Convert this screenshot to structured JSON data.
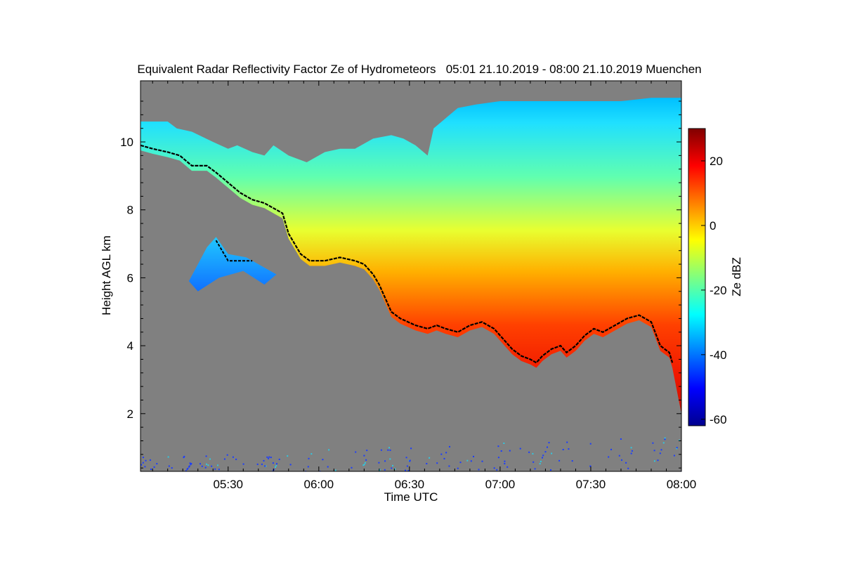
{
  "chart_data": {
    "type": "heatmap",
    "title": "Equivalent Radar Reflectivity Factor Ze of Hydrometeors   05:01 21.10.2019 - 08:00 21.10.2019 Muenchen",
    "xlabel": "Time UTC",
    "ylabel": "Height AGL km",
    "xlim_minutes": [
      301,
      480
    ],
    "ylim": [
      0.3,
      11.8
    ],
    "x_ticks": [
      "05:30",
      "06:00",
      "06:30",
      "07:00",
      "07:30",
      "08:00"
    ],
    "x_tick_values": [
      330,
      360,
      390,
      420,
      450,
      480
    ],
    "y_ticks": [
      "2",
      "4",
      "6",
      "8",
      "10"
    ],
    "y_tick_values": [
      2,
      4,
      6,
      8,
      10
    ],
    "background_color": "#808080",
    "colorbar": {
      "label": "Ze dBZ",
      "range": [
        -62,
        30
      ],
      "ticks": [
        "-60",
        "-40",
        "-20",
        "0",
        "20"
      ],
      "tick_values": [
        -60,
        -40,
        -20,
        0,
        20
      ],
      "colormap": "jet",
      "colors": [
        "#00008f",
        "#0000ff",
        "#00ffff",
        "#ffff00",
        "#ff0000",
        "#800000"
      ]
    },
    "echo_top": [
      [
        301,
        10.6
      ],
      [
        305,
        10.6
      ],
      [
        310,
        10.6
      ],
      [
        313,
        10.4
      ],
      [
        318,
        10.3
      ],
      [
        325,
        10.0
      ],
      [
        330,
        9.8
      ],
      [
        333,
        9.9
      ],
      [
        338,
        9.7
      ],
      [
        342,
        9.6
      ],
      [
        345,
        9.9
      ],
      [
        350,
        9.6
      ],
      [
        356,
        9.4
      ],
      [
        362,
        9.7
      ],
      [
        367,
        9.8
      ],
      [
        372,
        9.8
      ],
      [
        378,
        10.1
      ],
      [
        384,
        10.2
      ],
      [
        388,
        10.1
      ],
      [
        392,
        9.9
      ],
      [
        396,
        9.6
      ],
      [
        398,
        10.4
      ],
      [
        402,
        10.7
      ],
      [
        406,
        11.0
      ],
      [
        412,
        11.1
      ],
      [
        420,
        11.2
      ],
      [
        430,
        11.2
      ],
      [
        440,
        11.2
      ],
      [
        450,
        11.2
      ],
      [
        460,
        11.2
      ],
      [
        470,
        11.3
      ],
      [
        480,
        11.3
      ]
    ],
    "cloud_base": [
      [
        301,
        9.9
      ],
      [
        305,
        9.8
      ],
      [
        310,
        9.7
      ],
      [
        314,
        9.6
      ],
      [
        318,
        9.3
      ],
      [
        323,
        9.3
      ],
      [
        326,
        9.1
      ],
      [
        330,
        8.8
      ],
      [
        334,
        8.5
      ],
      [
        338,
        8.3
      ],
      [
        342,
        8.2
      ],
      [
        346,
        8.0
      ],
      [
        348,
        7.9
      ],
      [
        350,
        7.3
      ],
      [
        352,
        7.0
      ],
      [
        354,
        6.7
      ],
      [
        357,
        6.5
      ],
      [
        362,
        6.5
      ],
      [
        367,
        6.6
      ],
      [
        372,
        6.5
      ],
      [
        375,
        6.4
      ],
      [
        378,
        6.1
      ],
      [
        380,
        5.8
      ],
      [
        382,
        5.4
      ],
      [
        384,
        5.0
      ],
      [
        387,
        4.8
      ],
      [
        392,
        4.6
      ],
      [
        396,
        4.5
      ],
      [
        399,
        4.6
      ],
      [
        402,
        4.5
      ],
      [
        406,
        4.4
      ],
      [
        410,
        4.6
      ],
      [
        414,
        4.7
      ],
      [
        418,
        4.5
      ],
      [
        421,
        4.2
      ],
      [
        424,
        3.9
      ],
      [
        427,
        3.7
      ],
      [
        430,
        3.6
      ],
      [
        432,
        3.5
      ],
      [
        434,
        3.7
      ],
      [
        437,
        3.9
      ],
      [
        440,
        4.0
      ],
      [
        442,
        3.8
      ],
      [
        445,
        4.0
      ],
      [
        448,
        4.3
      ],
      [
        451,
        4.5
      ],
      [
        454,
        4.4
      ],
      [
        458,
        4.6
      ],
      [
        462,
        4.8
      ],
      [
        466,
        4.9
      ],
      [
        470,
        4.7
      ],
      [
        473,
        4.0
      ],
      [
        476,
        3.8
      ],
      [
        477,
        3.5
      ]
    ],
    "isolated_cloud": {
      "x_range_minutes": [
        317,
        346
      ],
      "y_range": [
        5.6,
        7.2
      ],
      "base_points": [
        [
          326,
          7.1
        ],
        [
          328,
          6.8
        ],
        [
          330,
          6.5
        ],
        [
          335,
          6.5
        ],
        [
          338,
          6.5
        ]
      ]
    },
    "virga_base": [
      [
        480,
        2.0
      ]
    ],
    "low_level_noise_band": [
      0.3,
      1.4
    ]
  }
}
